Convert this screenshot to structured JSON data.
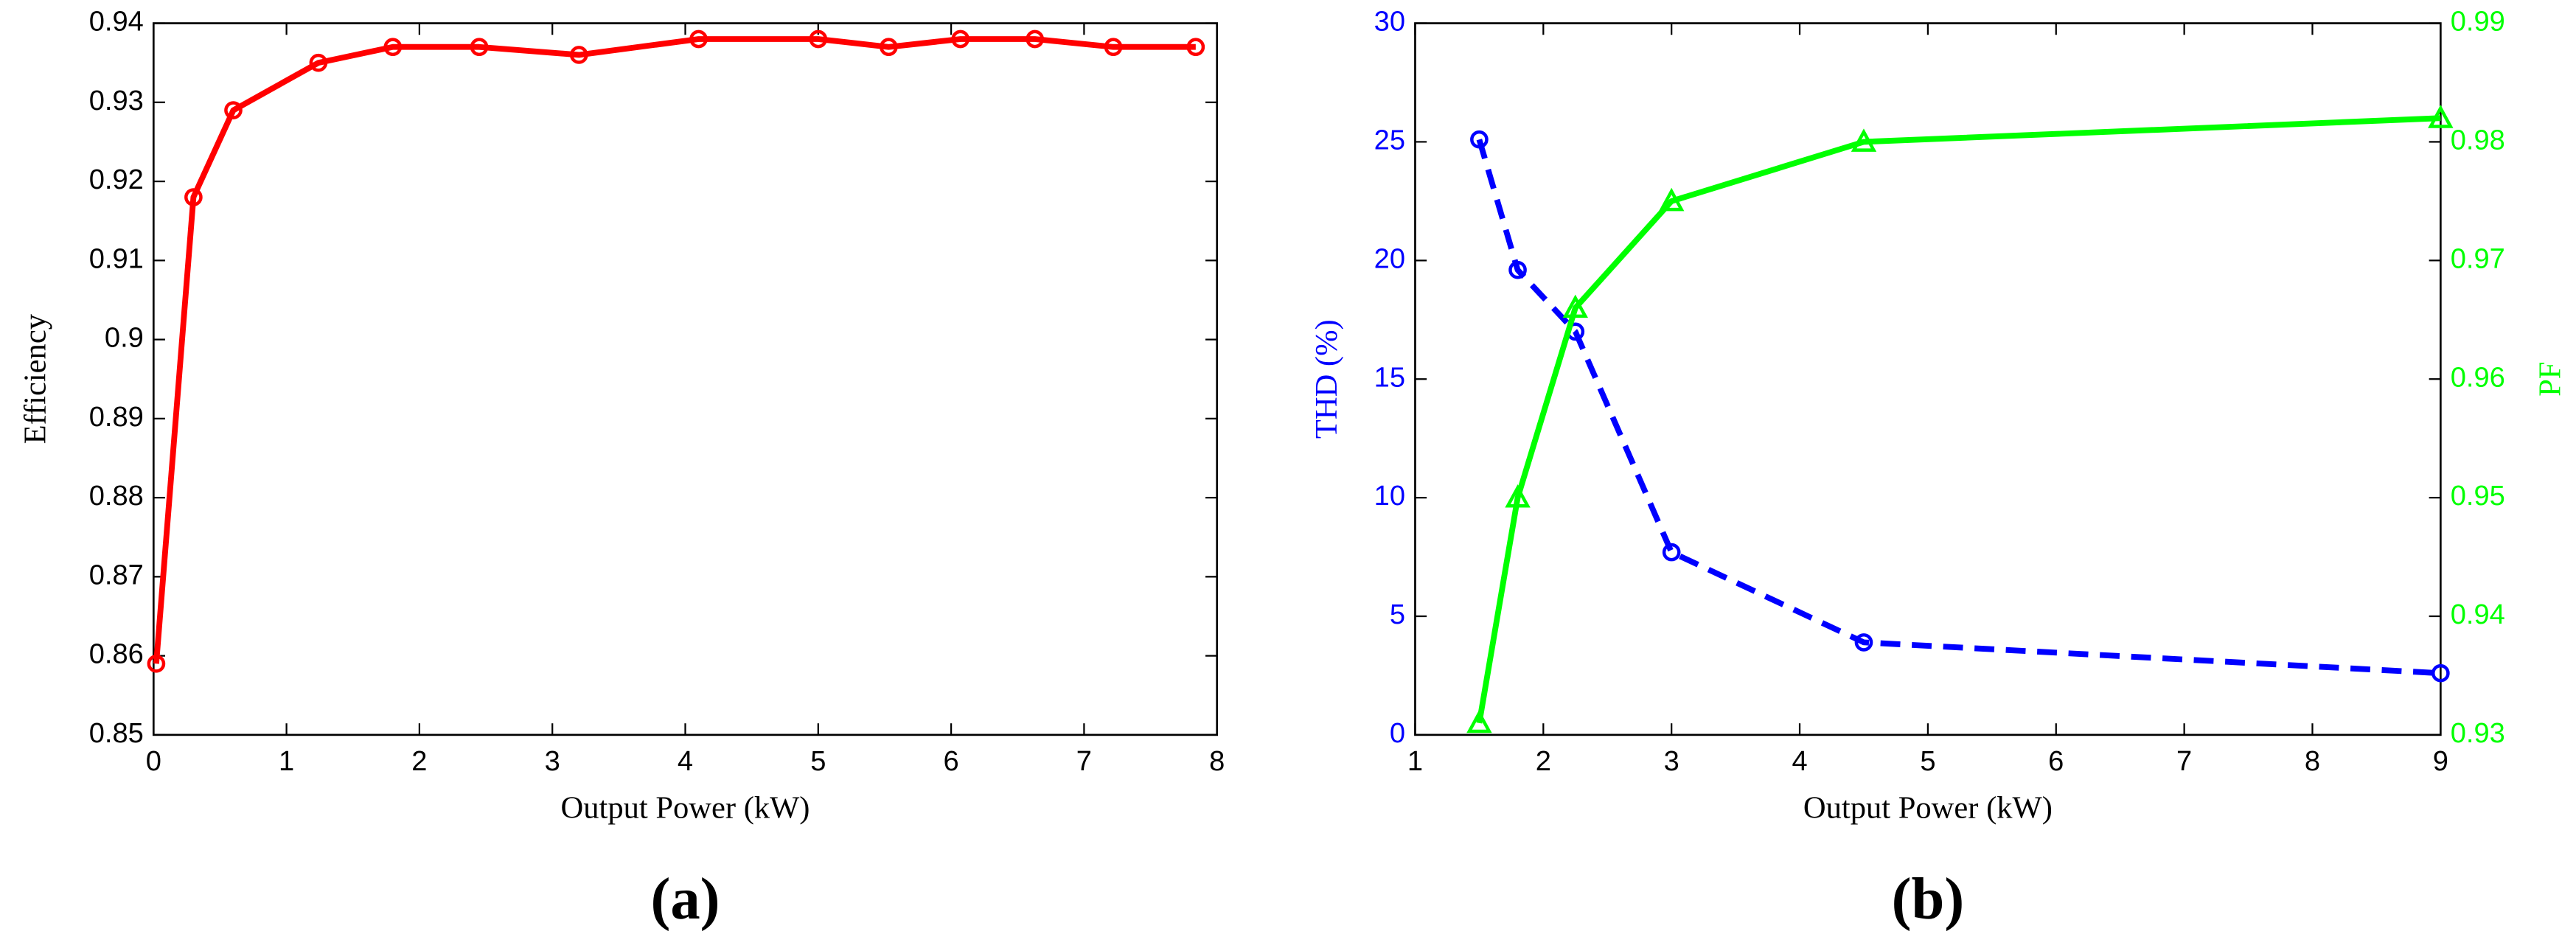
{
  "chart_data": [
    {
      "type": "line",
      "caption": "(a)",
      "xlabel": "Output Power (kW)",
      "ylabel": "Efficiency",
      "x": [
        0.02,
        0.3,
        0.6,
        1.24,
        1.8,
        2.45,
        3.2,
        4.1,
        5.0,
        5.53,
        6.07,
        6.63,
        7.22,
        7.84
      ],
      "xlim": [
        0,
        8
      ],
      "xticks": [
        0,
        1,
        2,
        3,
        4,
        5,
        6,
        7,
        8
      ],
      "ylim": [
        0.85,
        0.94
      ],
      "yticks": [
        0.85,
        0.86,
        0.87,
        0.88,
        0.89,
        0.9,
        0.91,
        0.92,
        0.93,
        0.94
      ],
      "series": [
        {
          "color": "#ff0000",
          "marker": "circle",
          "dashed": false,
          "values": [
            0.859,
            0.918,
            0.929,
            0.935,
            0.937,
            0.937,
            0.936,
            0.938,
            0.938,
            0.937,
            0.938,
            0.938,
            0.937,
            0.937
          ]
        }
      ]
    },
    {
      "type": "line",
      "caption": "(b)",
      "xlabel": "Output Power (kW)",
      "ylabel": "THD (%)",
      "y2label": "PF",
      "x": [
        1.5,
        1.8,
        2.25,
        3,
        4.5,
        9
      ],
      "xlim": [
        1,
        9
      ],
      "xticks": [
        1,
        2,
        3,
        4,
        5,
        6,
        7,
        8,
        9
      ],
      "ylim": [
        0,
        30
      ],
      "yticks": [
        0,
        5,
        10,
        15,
        20,
        25,
        30
      ],
      "y2lim": [
        0.93,
        0.99
      ],
      "y2ticks": [
        0.93,
        0.94,
        0.95,
        0.96,
        0.97,
        0.98,
        0.99
      ],
      "series": [
        {
          "color": "#0000ff",
          "marker": "circle",
          "dashed": true,
          "axis": "y",
          "values": [
            25.1,
            19.6,
            17.0,
            7.7,
            3.9,
            2.6
          ]
        },
        {
          "color": "#00ff00",
          "marker": "triangle",
          "dashed": false,
          "axis": "y2",
          "values": [
            0.931,
            0.95,
            0.966,
            0.975,
            0.98,
            0.982
          ]
        }
      ]
    }
  ]
}
